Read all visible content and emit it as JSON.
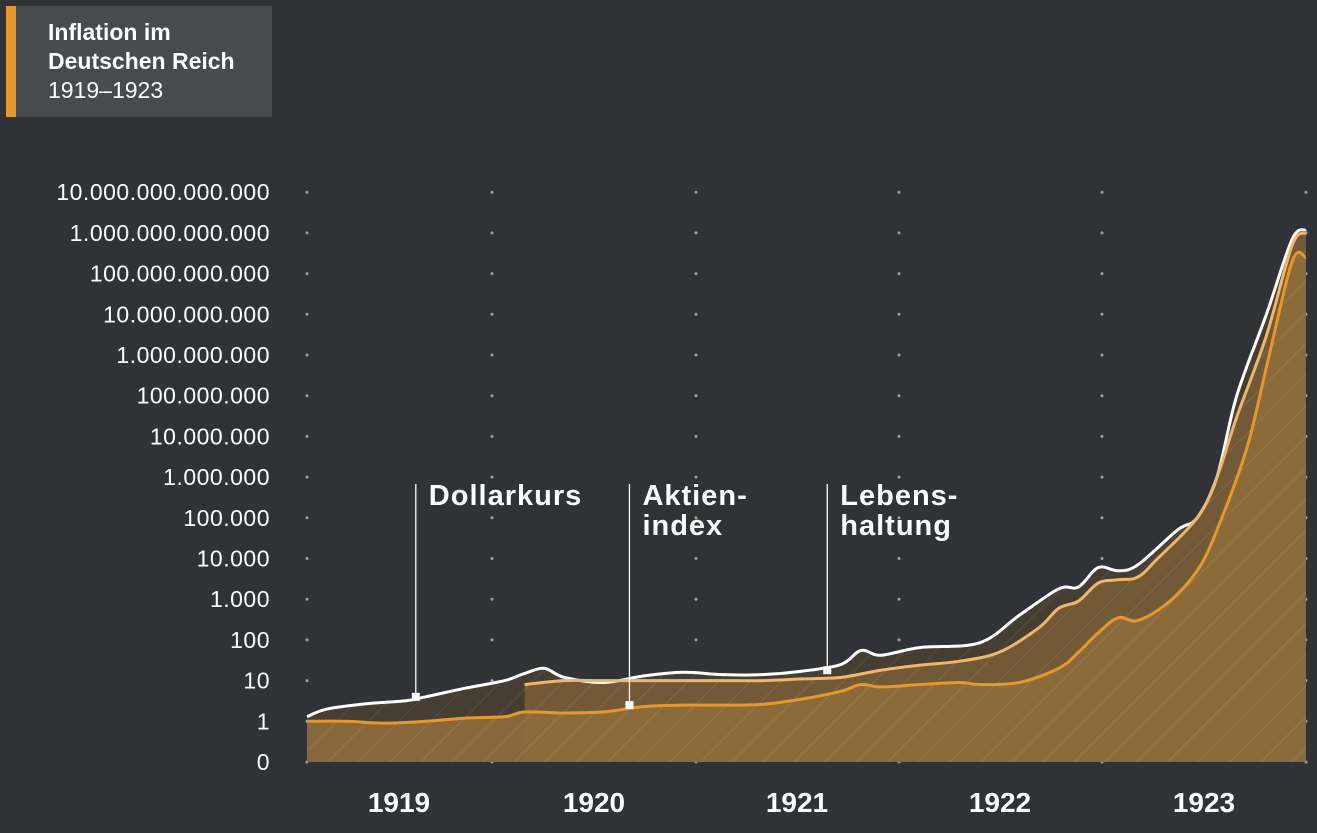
{
  "title": {
    "line1": "Inflation im",
    "line2": "Deutschen Reich",
    "line3": "1919–1923"
  },
  "colors": {
    "background": "#2f3236",
    "title_box": "#474a4e",
    "accent": "#e4982e",
    "series_dollarkurs": "#ffffff",
    "series_aktienindex": "#f0b66b",
    "series_lebenshaltung": "#e4982e",
    "fill_dark": "#5a4a32",
    "fill_brown": "#8a6a3a"
  },
  "chart_data": {
    "type": "area",
    "title": "Inflation im Deutschen Reich 1919–1923",
    "scale": "log",
    "y_tick_labels": [
      "0",
      "1",
      "10",
      "100",
      "1.000",
      "10.000",
      "100.000",
      "1.000.000",
      "10.000.000",
      "100.000.000",
      "1.000.000.000",
      "10.000.000.000",
      "100.000.000.000",
      "1.000.000.000.000",
      "10.000.000.000.000"
    ],
    "x_tick_labels": [
      "1919",
      "1920",
      "1921",
      "1922",
      "1923"
    ],
    "grid": "dotted",
    "series": [
      {
        "name": "Dollarkurs",
        "points": [
          [
            1919.0,
            1.3
          ],
          [
            1919.1,
            2.0
          ],
          [
            1919.3,
            2.7
          ],
          [
            1919.5,
            3.2
          ],
          [
            1919.6,
            4.0
          ],
          [
            1919.8,
            6.5
          ],
          [
            1920.0,
            10
          ],
          [
            1920.1,
            15
          ],
          [
            1920.2,
            20
          ],
          [
            1920.3,
            12
          ],
          [
            1920.5,
            9
          ],
          [
            1920.7,
            13
          ],
          [
            1920.9,
            16
          ],
          [
            1921.1,
            14
          ],
          [
            1921.3,
            14
          ],
          [
            1921.5,
            17
          ],
          [
            1921.7,
            25
          ],
          [
            1921.8,
            55
          ],
          [
            1921.9,
            42
          ],
          [
            1922.1,
            65
          ],
          [
            1922.4,
            85
          ],
          [
            1922.6,
            400
          ],
          [
            1922.8,
            1800
          ],
          [
            1922.9,
            2000
          ],
          [
            1923.0,
            6000
          ],
          [
            1923.1,
            5000
          ],
          [
            1923.2,
            7000
          ],
          [
            1923.4,
            50000
          ],
          [
            1923.5,
            100000
          ],
          [
            1923.6,
            1000000
          ],
          [
            1923.7,
            100000000
          ],
          [
            1923.85,
            10000000000
          ],
          [
            1923.98,
            700000000000
          ],
          [
            1924.05,
            1200000000000
          ]
        ]
      },
      {
        "name": "Aktienindex",
        "points": [
          [
            1920.1,
            8
          ],
          [
            1920.3,
            10
          ],
          [
            1920.5,
            10
          ],
          [
            1920.7,
            10
          ],
          [
            1920.9,
            10
          ],
          [
            1921.1,
            10
          ],
          [
            1921.3,
            10
          ],
          [
            1921.5,
            11
          ],
          [
            1921.7,
            12
          ],
          [
            1921.9,
            18
          ],
          [
            1922.1,
            24
          ],
          [
            1922.3,
            30
          ],
          [
            1922.5,
            50
          ],
          [
            1922.7,
            200
          ],
          [
            1922.8,
            600
          ],
          [
            1922.9,
            900
          ],
          [
            1923.0,
            2500
          ],
          [
            1923.1,
            3000
          ],
          [
            1923.2,
            3500
          ],
          [
            1923.3,
            10000
          ],
          [
            1923.5,
            100000
          ],
          [
            1923.6,
            1000000
          ],
          [
            1923.7,
            30000000
          ],
          [
            1923.85,
            3000000000
          ],
          [
            1923.98,
            500000000000
          ],
          [
            1924.05,
            1000000000000
          ]
        ]
      },
      {
        "name": "Lebenshaltung",
        "points": [
          [
            1919.0,
            1
          ],
          [
            1919.2,
            1
          ],
          [
            1919.4,
            0.9
          ],
          [
            1919.6,
            1
          ],
          [
            1919.8,
            1.2
          ],
          [
            1920.0,
            1.3
          ],
          [
            1920.1,
            1.7
          ],
          [
            1920.3,
            1.6
          ],
          [
            1920.5,
            1.7
          ],
          [
            1920.7,
            2.3
          ],
          [
            1920.9,
            2.5
          ],
          [
            1921.1,
            2.5
          ],
          [
            1921.3,
            2.6
          ],
          [
            1921.5,
            3.5
          ],
          [
            1921.7,
            5.5
          ],
          [
            1921.8,
            8
          ],
          [
            1921.9,
            7
          ],
          [
            1922.1,
            8
          ],
          [
            1922.3,
            9
          ],
          [
            1922.4,
            8
          ],
          [
            1922.6,
            9
          ],
          [
            1922.8,
            20
          ],
          [
            1922.9,
            50
          ],
          [
            1923.0,
            150
          ],
          [
            1923.1,
            350
          ],
          [
            1923.2,
            300
          ],
          [
            1923.35,
            800
          ],
          [
            1923.5,
            5000
          ],
          [
            1923.6,
            50000
          ],
          [
            1923.75,
            5000000
          ],
          [
            1923.85,
            500000000
          ],
          [
            1923.98,
            200000000000
          ],
          [
            1924.05,
            250000000000
          ]
        ]
      }
    ]
  },
  "annotations": [
    {
      "label": "Dollarkurs",
      "x": 1919.55,
      "y": 4
    },
    {
      "label": "Aktien-",
      "label2": "index",
      "x": 1920.63,
      "y": 2.5
    },
    {
      "label": "Lebens-",
      "label2": "haltung",
      "x": 1921.63,
      "y": 18
    }
  ]
}
